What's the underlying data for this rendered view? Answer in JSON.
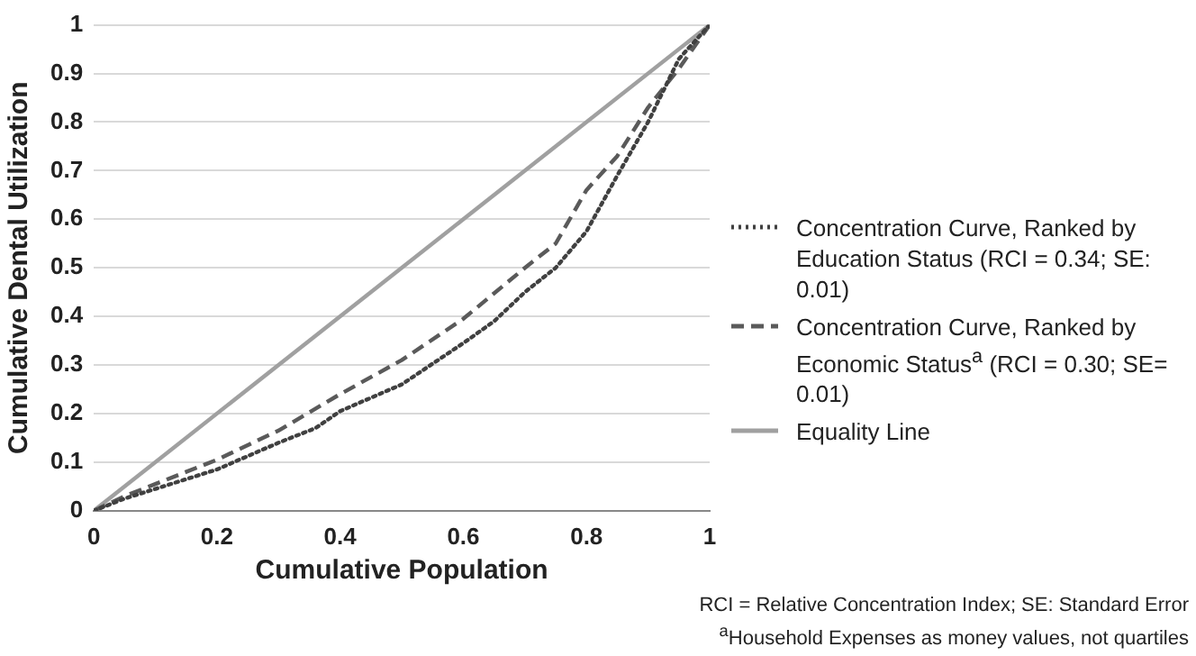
{
  "chart_data": {
    "type": "line",
    "xlabel": "Cumulative Population",
    "ylabel": "Cumulative Dental Utilization",
    "xlim": [
      0,
      1
    ],
    "ylim": [
      0,
      1
    ],
    "xticks": [
      0,
      0.2,
      0.4,
      0.6,
      0.8,
      1
    ],
    "yticks": [
      0,
      0.1,
      0.2,
      0.3,
      0.4,
      0.5,
      0.6,
      0.7,
      0.8,
      0.9,
      1
    ],
    "grid": "y",
    "legend": "right",
    "marker": "none",
    "series": [
      {
        "name": "Concentration Curve, Ranked by Education Status (RCI = 0.34; SE: 0.01)",
        "color": "#404040",
        "line_style": "dotted",
        "x": [
          0,
          0.05,
          0.1,
          0.2,
          0.3,
          0.36,
          0.4,
          0.5,
          0.6,
          0.65,
          0.7,
          0.75,
          0.8,
          0.85,
          0.9,
          0.95,
          1
        ],
        "values": [
          0,
          0.025,
          0.045,
          0.085,
          0.14,
          0.17,
          0.205,
          0.26,
          0.345,
          0.39,
          0.45,
          0.5,
          0.575,
          0.69,
          0.8,
          0.93,
          1
        ]
      },
      {
        "name": "Concentration Curve, Ranked by Economic Status$^{a}$ (RCI = 0.30; SE= 0.01)",
        "color": "#5a5a5a",
        "line_style": "dashed",
        "x": [
          0,
          0.05,
          0.1,
          0.2,
          0.3,
          0.4,
          0.5,
          0.6,
          0.7,
          0.75,
          0.8,
          0.85,
          0.9,
          0.95,
          1
        ],
        "values": [
          0,
          0.03,
          0.055,
          0.105,
          0.165,
          0.24,
          0.31,
          0.395,
          0.5,
          0.55,
          0.66,
          0.73,
          0.83,
          0.91,
          1
        ]
      },
      {
        "name": "Equality Line",
        "color": "#a0a0a0",
        "line_style": "solid",
        "x": [
          0,
          1
        ],
        "values": [
          0,
          1
        ]
      }
    ],
    "annotations": [
      "RCI = Relative Concentration Index; SE: Standard Error",
      "$^{a}$Household Expenses as money values, not quartiles"
    ]
  }
}
